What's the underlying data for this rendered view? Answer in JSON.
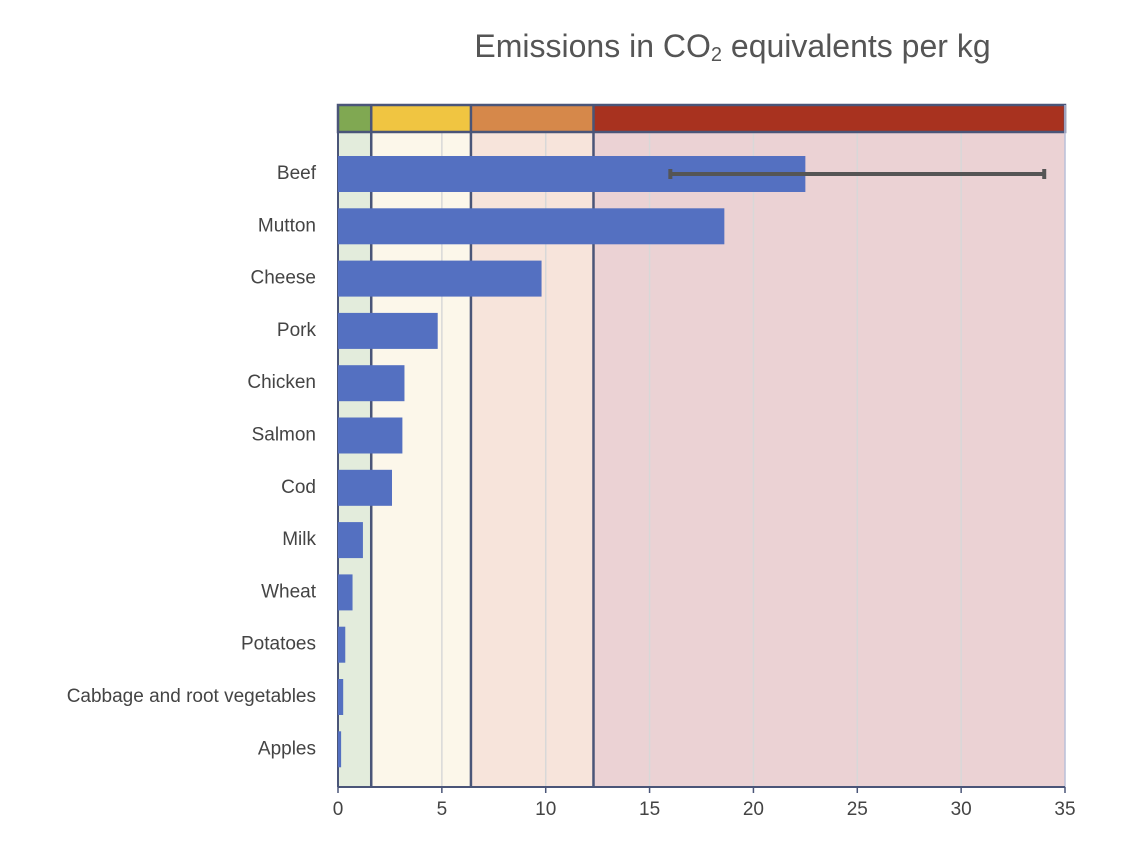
{
  "chart_data": {
    "type": "bar",
    "orientation": "horizontal",
    "title": {
      "prefix": "Emissions in CO",
      "subscript": "2",
      "suffix": " equivalents per kg"
    },
    "categories": [
      "Beef",
      "Mutton",
      "Cheese",
      "Pork",
      "Chicken",
      "Salmon",
      "Cod",
      "Milk",
      "Wheat",
      "Potatoes",
      "Cabbage and root vegetables",
      "Apples"
    ],
    "values": [
      22.5,
      18.6,
      9.8,
      4.8,
      3.2,
      3.1,
      2.6,
      1.2,
      0.7,
      0.35,
      0.25,
      0.15
    ],
    "error_bars": [
      {
        "category": "Beef",
        "low": 16,
        "high": 34
      }
    ],
    "xlim": [
      0,
      35
    ],
    "xticks": [
      0,
      5,
      10,
      15,
      20,
      25,
      30,
      35
    ],
    "grid": true,
    "bar_color": "#5470c1",
    "error_bar_color": "#555555",
    "zones": [
      {
        "start": 0,
        "end": 1.6,
        "band_color": "#80a852",
        "fill_color": "#e3ecdc"
      },
      {
        "start": 1.6,
        "end": 6.4,
        "band_color": "#f0c541",
        "fill_color": "#fcf7ea"
      },
      {
        "start": 6.4,
        "end": 12.3,
        "band_color": "#d6884a",
        "fill_color": "#f7e4db"
      },
      {
        "start": 12.3,
        "end": 35,
        "band_color": "#a8321f",
        "fill_color": "#ebd2d4"
      }
    ]
  }
}
